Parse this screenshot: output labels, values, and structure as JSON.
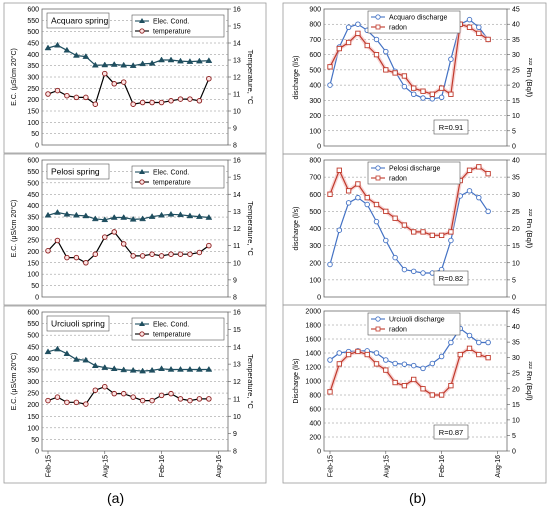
{
  "figure": {
    "labels": [
      "(a)",
      "(b)"
    ]
  },
  "chart_data": [
    {
      "type": "line",
      "title": "Acquaro spring",
      "ylabel": "E.C. (μS/cm 20°C)",
      "y2label": "Temperature, °C",
      "ylim": [
        0,
        600
      ],
      "yticks": [
        "0",
        "50",
        "100",
        "150",
        "200",
        "250",
        "300",
        "350",
        "400",
        "450",
        "500",
        "550",
        "600"
      ],
      "y2lim": [
        8,
        16
      ],
      "y2ticks": [
        "8",
        "9",
        "10",
        "11",
        "12",
        "13",
        "14",
        "15",
        "16"
      ],
      "legend_position": "top-right",
      "xticks": [],
      "series": [
        {
          "name": "Elec. Cond.",
          "axis": "left",
          "color": "#1f4e5f",
          "marker": "triangle",
          "x": [
            0,
            1,
            2,
            3,
            4,
            5,
            6,
            7,
            8,
            9,
            10,
            11,
            12,
            13,
            14,
            15,
            16,
            17
          ],
          "values": [
            428,
            440,
            418,
            395,
            390,
            352,
            353,
            355,
            352,
            350,
            358,
            360,
            375,
            375,
            370,
            368,
            370,
            372
          ]
        },
        {
          "name": "temperature",
          "axis": "right",
          "color": "#000000",
          "marker": "circle",
          "x": [
            0,
            1,
            2,
            3,
            4,
            5,
            6,
            7,
            8,
            9,
            10,
            11,
            12,
            13,
            14,
            15,
            16,
            17
          ],
          "values": [
            11.0,
            11.2,
            10.9,
            10.8,
            10.8,
            10.4,
            12.2,
            11.6,
            11.7,
            10.4,
            10.5,
            10.5,
            10.5,
            10.6,
            10.7,
            10.7,
            10.6,
            11.9
          ]
        }
      ]
    },
    {
      "type": "line",
      "title": "Pelosi spring",
      "ylabel": "E.C. (μS/cm 20°C)",
      "y2label": "Temperature, °C",
      "ylim": [
        0,
        600
      ],
      "yticks": [
        "0",
        "50",
        "100",
        "150",
        "200",
        "250",
        "300",
        "350",
        "400",
        "450",
        "500",
        "550",
        "600"
      ],
      "y2lim": [
        8,
        16
      ],
      "y2ticks": [
        "8",
        "9",
        "10",
        "11",
        "12",
        "13",
        "14",
        "15",
        "16"
      ],
      "legend_position": "top-right",
      "xticks": [],
      "series": [
        {
          "name": "Elec. Cond.",
          "axis": "left",
          "color": "#1f4e5f",
          "marker": "triangle",
          "x": [
            0,
            1,
            2,
            3,
            4,
            5,
            6,
            7,
            8,
            9,
            10,
            11,
            12,
            13,
            14,
            15,
            16,
            17
          ],
          "values": [
            358,
            370,
            362,
            358,
            355,
            342,
            338,
            348,
            348,
            340,
            342,
            352,
            358,
            362,
            360,
            355,
            352,
            348
          ]
        },
        {
          "name": "temperature",
          "axis": "right",
          "color": "#000000",
          "marker": "circle",
          "x": [
            0,
            1,
            2,
            3,
            4,
            5,
            6,
            7,
            8,
            9,
            10,
            11,
            12,
            13,
            14,
            15,
            16,
            17
          ],
          "values": [
            10.7,
            11.3,
            10.3,
            10.3,
            10.0,
            10.5,
            11.5,
            11.8,
            11.1,
            10.4,
            10.4,
            10.5,
            10.4,
            10.5,
            10.5,
            10.5,
            10.6,
            11.0
          ]
        }
      ]
    },
    {
      "type": "line",
      "title": "Urciuoli spring",
      "ylabel": "E.C. (μS/cm 20°C)",
      "y2label": "Temperature, °C",
      "ylim": [
        0,
        600
      ],
      "yticks": [
        "0",
        "50",
        "100",
        "150",
        "200",
        "250",
        "300",
        "350",
        "400",
        "450",
        "500",
        "550",
        "600"
      ],
      "y2lim": [
        8,
        16
      ],
      "y2ticks": [
        "8",
        "9",
        "10",
        "11",
        "12",
        "13",
        "14",
        "15",
        "16"
      ],
      "legend_position": "top-right",
      "xticks": [
        "Feb-15",
        "Aug-15",
        "Feb-16",
        "Aug-16"
      ],
      "xtick_pos": [
        0,
        6,
        12,
        18
      ],
      "series": [
        {
          "name": "Elec. Cond.",
          "axis": "left",
          "color": "#1f4e5f",
          "marker": "triangle",
          "x": [
            0,
            1,
            2,
            3,
            4,
            5,
            6,
            7,
            8,
            9,
            10,
            11,
            12,
            13,
            14,
            15,
            16,
            17
          ],
          "values": [
            428,
            440,
            420,
            395,
            392,
            368,
            360,
            355,
            350,
            348,
            345,
            348,
            355,
            352,
            352,
            352,
            352,
            352
          ]
        },
        {
          "name": "temperature",
          "axis": "right",
          "color": "#000000",
          "marker": "circle",
          "x": [
            0,
            1,
            2,
            3,
            4,
            5,
            6,
            7,
            8,
            9,
            10,
            11,
            12,
            13,
            14,
            15,
            16,
            17
          ],
          "values": [
            10.9,
            11.1,
            10.8,
            10.8,
            10.7,
            11.5,
            11.7,
            11.3,
            11.3,
            11.1,
            10.9,
            10.9,
            11.2,
            11.3,
            11.0,
            10.9,
            11.0,
            11.0
          ]
        }
      ]
    },
    {
      "type": "line",
      "title": "",
      "ylabel": "discharge (l/s)",
      "y2label": "²²² Rn (Bq/l)",
      "ylim": [
        0,
        900
      ],
      "yticks": [
        "0",
        "100",
        "200",
        "300",
        "400",
        "500",
        "600",
        "700",
        "800",
        "900"
      ],
      "y2lim": [
        0,
        45
      ],
      "y2ticks": [
        "0",
        "5",
        "10",
        "15",
        "20",
        "25",
        "30",
        "35",
        "40",
        "45"
      ],
      "legend_position": "top-right",
      "annotation": "R=0.91",
      "xticks": [],
      "series": [
        {
          "name": "Acquaro discharge",
          "axis": "left",
          "color": "#4472c4",
          "marker": "circle",
          "x": [
            0,
            1,
            2,
            3,
            4,
            5,
            6,
            7,
            8,
            9,
            10,
            11,
            12,
            13,
            14,
            15,
            16,
            17
          ],
          "values": [
            400,
            650,
            780,
            800,
            760,
            700,
            620,
            490,
            390,
            340,
            315,
            310,
            320,
            570,
            800,
            830,
            780,
            700
          ]
        },
        {
          "name": "radon",
          "axis": "right",
          "color": "#c0392b",
          "marker": "square",
          "x": [
            0,
            1,
            2,
            3,
            4,
            5,
            6,
            7,
            8,
            9,
            10,
            11,
            12,
            13,
            14,
            15,
            16,
            17
          ],
          "values": [
            26,
            32,
            34,
            37,
            33,
            30,
            25,
            24,
            23,
            19,
            18,
            17,
            19,
            17,
            40,
            39,
            37,
            35
          ]
        }
      ]
    },
    {
      "type": "line",
      "title": "",
      "ylabel": "discharge (l/s)",
      "y2label": "²²² Rn (Bq/l)",
      "ylim": [
        0,
        800
      ],
      "yticks": [
        "0",
        "100",
        "200",
        "300",
        "400",
        "500",
        "600",
        "700",
        "800"
      ],
      "y2lim": [
        0,
        40
      ],
      "y2ticks": [
        "0",
        "5",
        "10",
        "15",
        "20",
        "25",
        "30",
        "35",
        "40"
      ],
      "legend_position": "top-right",
      "annotation": "R=0.82",
      "xticks": [],
      "series": [
        {
          "name": "Pelosi discharge",
          "axis": "left",
          "color": "#4472c4",
          "marker": "circle",
          "x": [
            0,
            1,
            2,
            3,
            4,
            5,
            6,
            7,
            8,
            9,
            10,
            11,
            12,
            13,
            14,
            15,
            16,
            17
          ],
          "values": [
            190,
            390,
            550,
            580,
            540,
            440,
            330,
            230,
            160,
            150,
            140,
            140,
            160,
            330,
            590,
            620,
            580,
            500
          ]
        },
        {
          "name": "radon",
          "axis": "right",
          "color": "#c0392b",
          "marker": "square",
          "x": [
            0,
            1,
            2,
            3,
            4,
            5,
            6,
            7,
            8,
            9,
            10,
            11,
            12,
            13,
            14,
            15,
            16,
            17
          ],
          "values": [
            30,
            37,
            31,
            33,
            29,
            27,
            25,
            23,
            21,
            19,
            19,
            18,
            18,
            19,
            34,
            37,
            38,
            36
          ]
        }
      ]
    },
    {
      "type": "line",
      "title": "",
      "ylabel": "Discharge (l/s)",
      "y2label": "²²² Rn (Bq/l)",
      "ylim": [
        0,
        2000
      ],
      "yticks": [
        "0",
        "200",
        "400",
        "600",
        "800",
        "1000",
        "1200",
        "1400",
        "1600",
        "1800",
        "2000"
      ],
      "y2lim": [
        0,
        45
      ],
      "y2ticks": [
        "0",
        "5",
        "10",
        "15",
        "20",
        "25",
        "30",
        "35",
        "40",
        "45"
      ],
      "legend_position": "top-right",
      "annotation": "R=0.87",
      "xticks": [
        "Feb-15",
        "Aug-15",
        "Feb-16",
        "Aug-16"
      ],
      "xtick_pos": [
        0,
        6,
        12,
        18
      ],
      "series": [
        {
          "name": "Urciuoli discharge",
          "axis": "left",
          "color": "#4472c4",
          "marker": "circle",
          "x": [
            0,
            1,
            2,
            3,
            4,
            5,
            6,
            7,
            8,
            9,
            10,
            11,
            12,
            13,
            14,
            15,
            16,
            17
          ],
          "values": [
            1300,
            1400,
            1420,
            1430,
            1430,
            1400,
            1300,
            1250,
            1240,
            1220,
            1180,
            1250,
            1350,
            1550,
            1750,
            1650,
            1550,
            1550
          ]
        },
        {
          "name": "radon",
          "axis": "right",
          "color": "#c0392b",
          "marker": "square",
          "x": [
            0,
            1,
            2,
            3,
            4,
            5,
            6,
            7,
            8,
            9,
            10,
            11,
            12,
            13,
            14,
            15,
            16,
            17
          ],
          "values": [
            19,
            28,
            31,
            32,
            31,
            28,
            26,
            22,
            21,
            23,
            20,
            18,
            18,
            21,
            31,
            33,
            31,
            30
          ]
        }
      ]
    }
  ]
}
